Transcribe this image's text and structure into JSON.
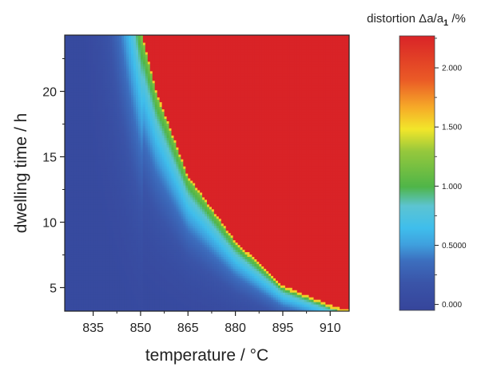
{
  "chart_data": {
    "type": "heatmap",
    "xlabel": "temperature / °C",
    "ylabel": "dwelling time / h",
    "xlim": [
      826,
      916
    ],
    "ylim": [
      3.2,
      24.3
    ],
    "x_ticks": [
      "835",
      "850",
      "865",
      "880",
      "895",
      "910"
    ],
    "x_tick_values": [
      835,
      850,
      865,
      880,
      895,
      910
    ],
    "y_ticks": [
      "5",
      "10",
      "15",
      "20"
    ],
    "y_tick_values": [
      5,
      10,
      15,
      20
    ],
    "colorbar": {
      "title": "distortion",
      "title_symbol": "Δa/a",
      "title_subscript": "1",
      "title_unit": " /%",
      "range": [
        -0.05,
        2.27
      ],
      "ticks": [
        "0.000",
        "0.5000",
        "1.000",
        "1.500",
        "2.000"
      ],
      "tick_values": [
        0.0,
        0.5,
        1.0,
        1.5,
        2.0
      ]
    },
    "saturation_boundary": [
      {
        "x": 850.5,
        "y": 24.3
      },
      {
        "x": 855,
        "y": 20
      },
      {
        "x": 865,
        "y": 13.6
      },
      {
        "x": 880,
        "y": 8.6
      },
      {
        "x": 895,
        "y": 5.2
      },
      {
        "x": 910,
        "y": 3.7
      },
      {
        "x": 915,
        "y": 3.3
      }
    ],
    "saturated_value": 2.27,
    "colors": {
      "low": "#3a4fa6",
      "mid": "#3fbbe8",
      "green": "#4fb548",
      "yellow": "#f2e62a",
      "high": "#d92327"
    }
  }
}
